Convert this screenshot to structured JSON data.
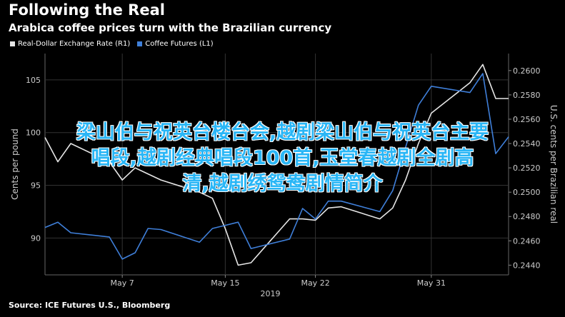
{
  "header": {
    "title": "Following the Real",
    "subtitle": "Arabica coffee prices turn with the Brazilian currency"
  },
  "colors": {
    "real": "#e6e6e6",
    "coffee": "#3f7fd9",
    "grid": "#333333",
    "axis_text": "#cccccc",
    "overlay": "#29b6f6"
  },
  "chart_data": {
    "type": "line",
    "x": [
      "2019-05-01",
      "2019-05-02",
      "2019-05-03",
      "2019-05-06",
      "2019-05-07",
      "2019-05-08",
      "2019-05-09",
      "2019-05-10",
      "2019-05-13",
      "2019-05-14",
      "2019-05-15",
      "2019-05-16",
      "2019-05-17",
      "2019-05-20",
      "2019-05-21",
      "2019-05-22",
      "2019-05-23",
      "2019-05-24",
      "2019-05-27",
      "2019-05-28",
      "2019-05-29",
      "2019-05-30",
      "2019-05-31",
      "2019-06-03",
      "2019-06-04",
      "2019-06-05",
      "2019-06-06"
    ],
    "x_ticks": [
      "May 7",
      "May 15",
      "May 22",
      "May 31"
    ],
    "x_tick_dates": [
      "2019-05-07",
      "2019-05-15",
      "2019-05-22",
      "2019-05-31"
    ],
    "xlabel_year": "2019",
    "series": [
      {
        "name": "Real-Dollar Exchange Rate (R1)",
        "axis": "right",
        "values": [
          0.2545,
          0.2525,
          0.254,
          0.2525,
          0.251,
          0.252,
          0.2515,
          0.251,
          0.25,
          0.2495,
          0.247,
          0.244,
          0.2442,
          0.2478,
          0.2478,
          0.2477,
          0.2487,
          0.2488,
          0.2478,
          0.2487,
          0.251,
          0.254,
          0.2565,
          0.259,
          0.2605,
          0.2577,
          0.2577
        ]
      },
      {
        "name": "Coffee Futures (L1)",
        "axis": "left",
        "values": [
          91.0,
          91.5,
          90.5,
          90.1,
          88.0,
          88.6,
          90.9,
          90.8,
          89.6,
          90.9,
          91.2,
          91.5,
          89.0,
          89.9,
          92.8,
          91.8,
          93.5,
          93.5,
          92.5,
          94.5,
          98.6,
          102.6,
          104.4,
          103.8,
          105.6,
          98.0,
          99.6
        ]
      }
    ],
    "left_axis": {
      "label": "Cents per pound",
      "ylim": [
        86.5,
        107.5
      ],
      "ticks": [
        "90",
        "95",
        "100",
        "105"
      ]
    },
    "right_axis": {
      "label": "U.S. cents per Brazilian real",
      "ylim": [
        0.2432,
        0.2614
      ],
      "ticks": [
        "0.2440",
        "0.2460",
        "0.2480",
        "0.2500",
        "0.2520",
        "0.2540",
        "0.2560",
        "0.2580",
        "0.2600"
      ]
    },
    "grid": true,
    "legend_placement": "top-left"
  },
  "source": "Source: ICE Futures U.S., Bloomberg",
  "overlay_text": {
    "line1": "梁山伯与祝英台楼台会,越剧梁山伯与祝英台主要",
    "line2": "唱段,越剧经典唱段100首,玉堂春越剧全剧高",
    "line3": "清,越剧绣鸳鸯剧情简介"
  }
}
